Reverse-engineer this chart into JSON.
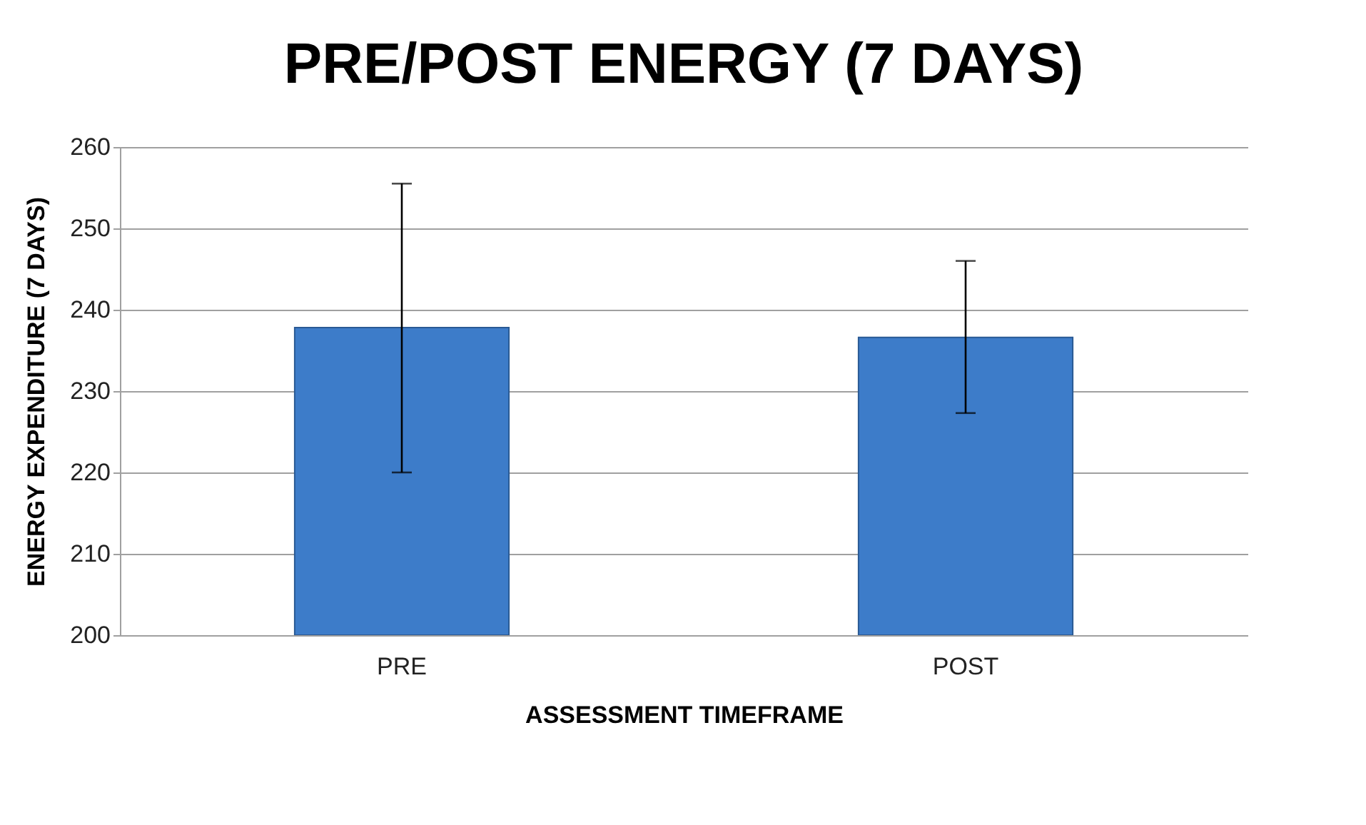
{
  "chart_data": {
    "type": "bar",
    "title": "PRE/POST ENERGY (7 DAYS)",
    "xlabel": "ASSESSMENT TIMEFRAME",
    "ylabel": "ENERGY EXPENDITURE (7 DAYS)",
    "categories": [
      "PRE",
      "POST"
    ],
    "values": [
      237.8,
      236.6
    ],
    "errors": [
      [
        220,
        255.5
      ],
      [
        227.3,
        246
      ]
    ],
    "color": "#3d7cc9",
    "ylim": [
      200,
      260
    ],
    "yticks": [
      200,
      210,
      220,
      230,
      240,
      250,
      260
    ],
    "grid": "y"
  }
}
